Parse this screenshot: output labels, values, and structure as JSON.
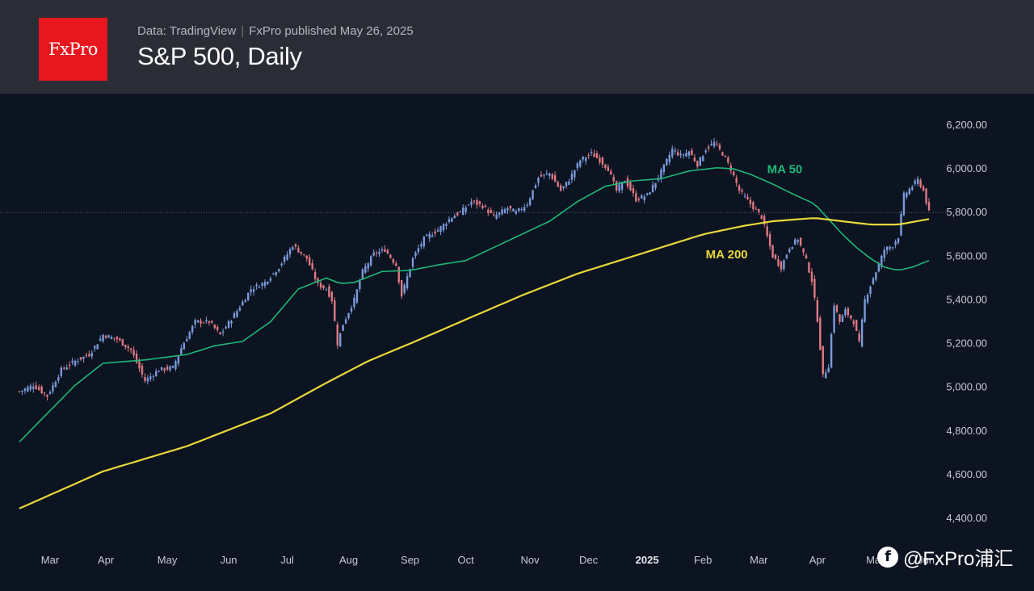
{
  "header": {
    "logo_text": "FxPro",
    "source_data": "Data: TradingView",
    "source_publisher": "FxPro published May 26, 2025",
    "title": "S&P 500, Daily"
  },
  "watermark": {
    "text": "@FxPro浦汇",
    "icon": "f-logo-icon"
  },
  "colors": {
    "up": "#7b9bdc",
    "down": "#e07a84",
    "ma50": "#1db777",
    "ma200": "#e9d83a",
    "background": "#0d1421",
    "header": "#2b2d36",
    "logo": "#e8161e"
  },
  "chart_data": {
    "type": "candlestick",
    "title": "S&P 500, Daily",
    "ylim": [
      4300,
      6300
    ],
    "yticks": [
      "6,200.00",
      "6,000.00",
      "5,800.00",
      "5,600.00",
      "5,400.00",
      "5,200.00",
      "5,000.00",
      "4,800.00",
      "4,600.00",
      "4,400.00"
    ],
    "ytick_values": [
      6200,
      6000,
      5800,
      5600,
      5400,
      5200,
      5000,
      4800,
      4600,
      4400
    ],
    "xticks": [
      "Mar",
      "Apr",
      "May",
      "Jun",
      "Jul",
      "Aug",
      "Sep",
      "Oct",
      "Nov",
      "Dec",
      "2025",
      "Feb",
      "Mar",
      "Apr",
      "May",
      "Jun"
    ],
    "xtick_index": [
      11,
      31,
      53,
      75,
      96,
      118,
      140,
      160,
      183,
      204,
      225,
      245,
      265,
      286,
      307,
      325
    ],
    "reference_line": 5800,
    "legend": "inline",
    "grid": false,
    "close_keypoints": [
      [
        0,
        4980
      ],
      [
        5,
        5010
      ],
      [
        10,
        4960
      ],
      [
        15,
        5080
      ],
      [
        20,
        5120
      ],
      [
        25,
        5150
      ],
      [
        30,
        5240
      ],
      [
        35,
        5220
      ],
      [
        40,
        5170
      ],
      [
        45,
        5030
      ],
      [
        50,
        5080
      ],
      [
        55,
        5090
      ],
      [
        58,
        5180
      ],
      [
        63,
        5300
      ],
      [
        68,
        5300
      ],
      [
        72,
        5240
      ],
      [
        78,
        5350
      ],
      [
        83,
        5450
      ],
      [
        88,
        5480
      ],
      [
        93,
        5550
      ],
      [
        98,
        5650
      ],
      [
        103,
        5590
      ],
      [
        107,
        5470
      ],
      [
        110,
        5450
      ],
      [
        112,
        5400
      ],
      [
        114,
        5200
      ],
      [
        116,
        5290
      ],
      [
        120,
        5400
      ],
      [
        123,
        5530
      ],
      [
        127,
        5610
      ],
      [
        131,
        5630
      ],
      [
        135,
        5560
      ],
      [
        137,
        5420
      ],
      [
        141,
        5590
      ],
      [
        145,
        5680
      ],
      [
        150,
        5720
      ],
      [
        155,
        5780
      ],
      [
        158,
        5800
      ],
      [
        162,
        5850
      ],
      [
        166,
        5830
      ],
      [
        170,
        5780
      ],
      [
        175,
        5820
      ],
      [
        178,
        5800
      ],
      [
        182,
        5840
      ],
      [
        186,
        5960
      ],
      [
        190,
        5980
      ],
      [
        194,
        5900
      ],
      [
        197,
        5950
      ],
      [
        201,
        6040
      ],
      [
        205,
        6070
      ],
      [
        208,
        6040
      ],
      [
        211,
        6000
      ],
      [
        214,
        5900
      ],
      [
        217,
        5950
      ],
      [
        221,
        5860
      ],
      [
        225,
        5880
      ],
      [
        228,
        5940
      ],
      [
        231,
        6010
      ],
      [
        234,
        6090
      ],
      [
        237,
        6060
      ],
      [
        240,
        6080
      ],
      [
        243,
        6020
      ],
      [
        246,
        6090
      ],
      [
        249,
        6120
      ],
      [
        252,
        6070
      ],
      [
        255,
        6000
      ],
      [
        258,
        5900
      ],
      [
        262,
        5840
      ],
      [
        266,
        5780
      ],
      [
        270,
        5600
      ],
      [
        273,
        5550
      ],
      [
        276,
        5640
      ],
      [
        279,
        5680
      ],
      [
        282,
        5580
      ],
      [
        284,
        5490
      ],
      [
        286,
        5310
      ],
      [
        288,
        5050
      ],
      [
        290,
        5100
      ],
      [
        292,
        5380
      ],
      [
        294,
        5300
      ],
      [
        296,
        5350
      ],
      [
        299,
        5300
      ],
      [
        301,
        5200
      ],
      [
        303,
        5400
      ],
      [
        306,
        5500
      ],
      [
        308,
        5560
      ],
      [
        310,
        5630
      ],
      [
        313,
        5650
      ],
      [
        315,
        5690
      ],
      [
        317,
        5880
      ],
      [
        320,
        5920
      ],
      [
        322,
        5950
      ],
      [
        324,
        5900
      ],
      [
        326,
        5800
      ]
    ],
    "ma50_keypoints": [
      [
        0,
        4750
      ],
      [
        20,
        5010
      ],
      [
        30,
        5110
      ],
      [
        45,
        5125
      ],
      [
        60,
        5150
      ],
      [
        70,
        5190
      ],
      [
        80,
        5210
      ],
      [
        90,
        5300
      ],
      [
        100,
        5450
      ],
      [
        110,
        5500
      ],
      [
        115,
        5475
      ],
      [
        120,
        5480
      ],
      [
        130,
        5530
      ],
      [
        140,
        5535
      ],
      [
        150,
        5560
      ],
      [
        160,
        5580
      ],
      [
        165,
        5610
      ],
      [
        170,
        5640
      ],
      [
        180,
        5700
      ],
      [
        190,
        5760
      ],
      [
        200,
        5850
      ],
      [
        210,
        5920
      ],
      [
        220,
        5945
      ],
      [
        230,
        5955
      ],
      [
        240,
        5990
      ],
      [
        250,
        6005
      ],
      [
        256,
        6000
      ],
      [
        262,
        5975
      ],
      [
        270,
        5930
      ],
      [
        278,
        5880
      ],
      [
        285,
        5840
      ],
      [
        290,
        5770
      ],
      [
        295,
        5700
      ],
      [
        300,
        5640
      ],
      [
        305,
        5590
      ],
      [
        310,
        5550
      ],
      [
        315,
        5535
      ],
      [
        320,
        5550
      ],
      [
        326,
        5580
      ]
    ],
    "ma200_keypoints": [
      [
        0,
        4445
      ],
      [
        30,
        4615
      ],
      [
        60,
        4730
      ],
      [
        90,
        4880
      ],
      [
        110,
        5020
      ],
      [
        125,
        5120
      ],
      [
        140,
        5200
      ],
      [
        160,
        5310
      ],
      [
        180,
        5420
      ],
      [
        200,
        5520
      ],
      [
        215,
        5580
      ],
      [
        230,
        5640
      ],
      [
        245,
        5700
      ],
      [
        260,
        5740
      ],
      [
        270,
        5760
      ],
      [
        285,
        5775
      ],
      [
        295,
        5760
      ],
      [
        305,
        5745
      ],
      [
        315,
        5745
      ],
      [
        326,
        5770
      ]
    ],
    "annotations": [
      {
        "text": "MA 50",
        "index": 268,
        "value": 5980
      },
      {
        "text": "MA 200",
        "index": 246,
        "value": 5590
      }
    ]
  }
}
